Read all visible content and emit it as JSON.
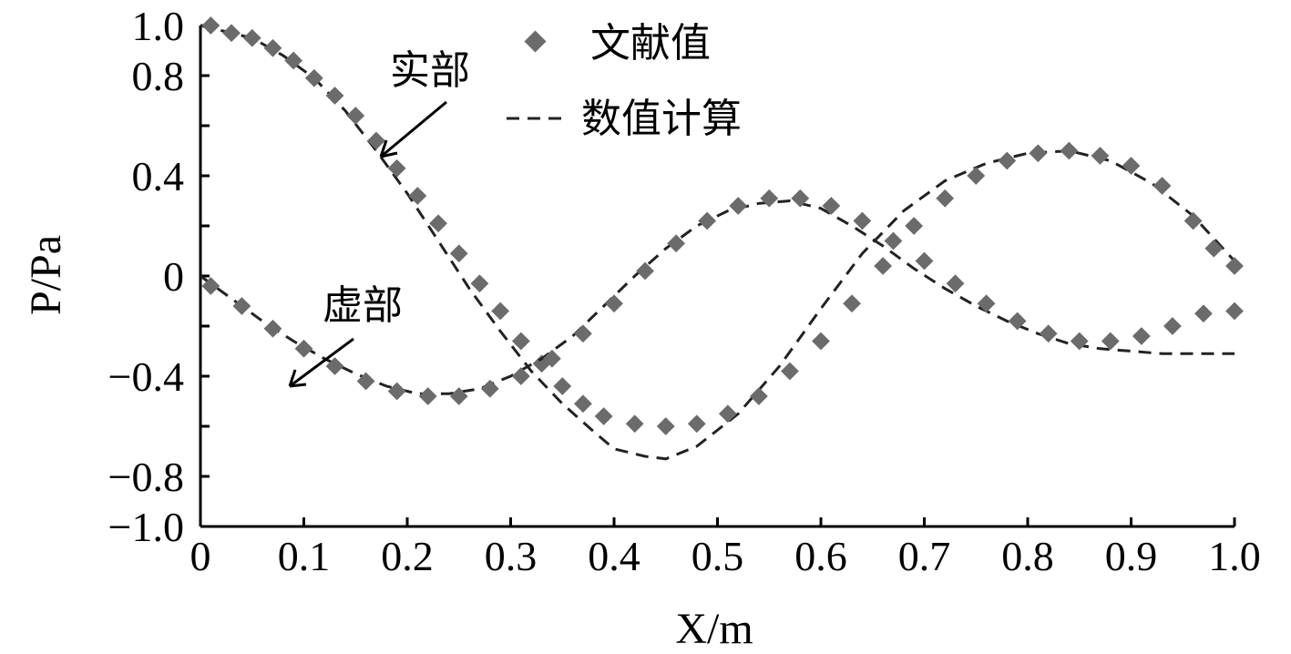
{
  "chart_data": {
    "type": "scatter",
    "xlabel": "X/m",
    "ylabel": "P/Pa",
    "xlim": [
      0,
      1.0
    ],
    "ylim": [
      -1.0,
      1.0
    ],
    "x_ticks": [
      "0",
      "0.1",
      "0.2",
      "0.3",
      "0.4",
      "0.5",
      "0.6",
      "0.7",
      "0.8",
      "0.9",
      "1.0"
    ],
    "y_ticks": [
      {
        "value": 1.0,
        "label": "1.0"
      },
      {
        "value": 0.8,
        "label": "0.8"
      },
      {
        "value": 0.4,
        "label": "0.4"
      },
      {
        "value": 0,
        "label": "0"
      },
      {
        "value": -0.4,
        "label": "−0.4"
      },
      {
        "value": -0.8,
        "label": "−0.8"
      },
      {
        "value": -1.0,
        "label": "−1.0"
      }
    ],
    "grid": false,
    "legend_position": "top-center",
    "series": [
      {
        "name": "文献值",
        "style": "markers",
        "color": "#6b6b6b",
        "x": [
          0.01,
          0.03,
          0.05,
          0.07,
          0.09,
          0.11,
          0.13,
          0.15,
          0.17,
          0.19,
          0.21,
          0.23,
          0.25,
          0.27,
          0.29,
          0.31,
          0.33,
          0.35,
          0.37,
          0.39,
          0.42,
          0.45,
          0.48,
          0.51,
          0.54,
          0.57,
          0.6,
          0.63,
          0.66,
          0.69,
          0.72,
          0.75,
          0.78,
          0.81,
          0.84,
          0.87,
          0.9,
          0.93,
          0.96,
          0.98,
          1.0
        ],
        "values": [
          1.0,
          0.97,
          0.95,
          0.91,
          0.86,
          0.79,
          0.72,
          0.64,
          0.54,
          0.43,
          0.32,
          0.21,
          0.09,
          -0.03,
          -0.14,
          -0.26,
          -0.35,
          -0.44,
          -0.51,
          -0.56,
          -0.59,
          -0.6,
          -0.59,
          -0.55,
          -0.48,
          -0.38,
          -0.26,
          -0.11,
          0.04,
          0.2,
          0.31,
          0.4,
          0.46,
          0.49,
          0.5,
          0.48,
          0.44,
          0.36,
          0.22,
          0.11,
          0.04
        ]
      },
      {
        "name": "数值计算",
        "style": "dashed-line",
        "color": "#222222",
        "x": [
          0.0,
          0.02,
          0.05,
          0.08,
          0.11,
          0.14,
          0.17,
          0.2,
          0.23,
          0.26,
          0.29,
          0.32,
          0.35,
          0.38,
          0.4,
          0.43,
          0.45,
          0.48,
          0.52,
          0.56,
          0.6,
          0.64,
          0.68,
          0.72,
          0.76,
          0.8,
          0.84,
          0.88,
          0.92,
          0.96,
          0.98,
          1.0
        ],
        "values": [
          1.0,
          0.98,
          0.95,
          0.88,
          0.79,
          0.66,
          0.5,
          0.33,
          0.14,
          -0.05,
          -0.22,
          -0.38,
          -0.51,
          -0.62,
          -0.69,
          -0.72,
          -0.73,
          -0.68,
          -0.55,
          -0.36,
          -0.13,
          0.09,
          0.26,
          0.38,
          0.45,
          0.49,
          0.5,
          0.46,
          0.37,
          0.24,
          0.15,
          0.06
        ]
      }
    ],
    "imag_series": {
      "markers_x": [
        0.01,
        0.04,
        0.07,
        0.1,
        0.13,
        0.16,
        0.19,
        0.22,
        0.25,
        0.28,
        0.31,
        0.34,
        0.37,
        0.4,
        0.43,
        0.46,
        0.49,
        0.52,
        0.55,
        0.58,
        0.61,
        0.64,
        0.67,
        0.7,
        0.73,
        0.76,
        0.79,
        0.82,
        0.85,
        0.88,
        0.91,
        0.94,
        0.97,
        1.0
      ],
      "markers_y": [
        -0.04,
        -0.12,
        -0.21,
        -0.29,
        -0.36,
        -0.42,
        -0.46,
        -0.48,
        -0.48,
        -0.45,
        -0.4,
        -0.33,
        -0.23,
        -0.11,
        0.02,
        0.13,
        0.22,
        0.28,
        0.31,
        0.31,
        0.28,
        0.22,
        0.14,
        0.06,
        -0.03,
        -0.11,
        -0.18,
        -0.23,
        -0.26,
        -0.26,
        -0.24,
        -0.2,
        -0.15,
        -0.14
      ],
      "line_x": [
        0.0,
        0.03,
        0.06,
        0.09,
        0.12,
        0.15,
        0.18,
        0.21,
        0.24,
        0.27,
        0.3,
        0.33,
        0.36,
        0.39,
        0.42,
        0.45,
        0.48,
        0.51,
        0.54,
        0.57,
        0.6,
        0.63,
        0.66,
        0.69,
        0.72,
        0.75,
        0.78,
        0.81,
        0.84,
        0.87,
        0.9,
        0.93,
        0.96,
        1.0
      ],
      "line_y": [
        0.0,
        -0.09,
        -0.18,
        -0.26,
        -0.33,
        -0.39,
        -0.44,
        -0.47,
        -0.47,
        -0.45,
        -0.4,
        -0.33,
        -0.24,
        -0.12,
        0.0,
        0.11,
        0.2,
        0.26,
        0.29,
        0.3,
        0.27,
        0.2,
        0.12,
        0.03,
        -0.05,
        -0.12,
        -0.18,
        -0.23,
        -0.27,
        -0.29,
        -0.3,
        -0.31,
        -0.31,
        -0.31
      ]
    },
    "annotations": [
      {
        "text": "实部",
        "points_to": [
          0.17,
          0.46
        ]
      },
      {
        "text": "虚部",
        "points_to": [
          0.08,
          -0.44
        ]
      }
    ]
  }
}
